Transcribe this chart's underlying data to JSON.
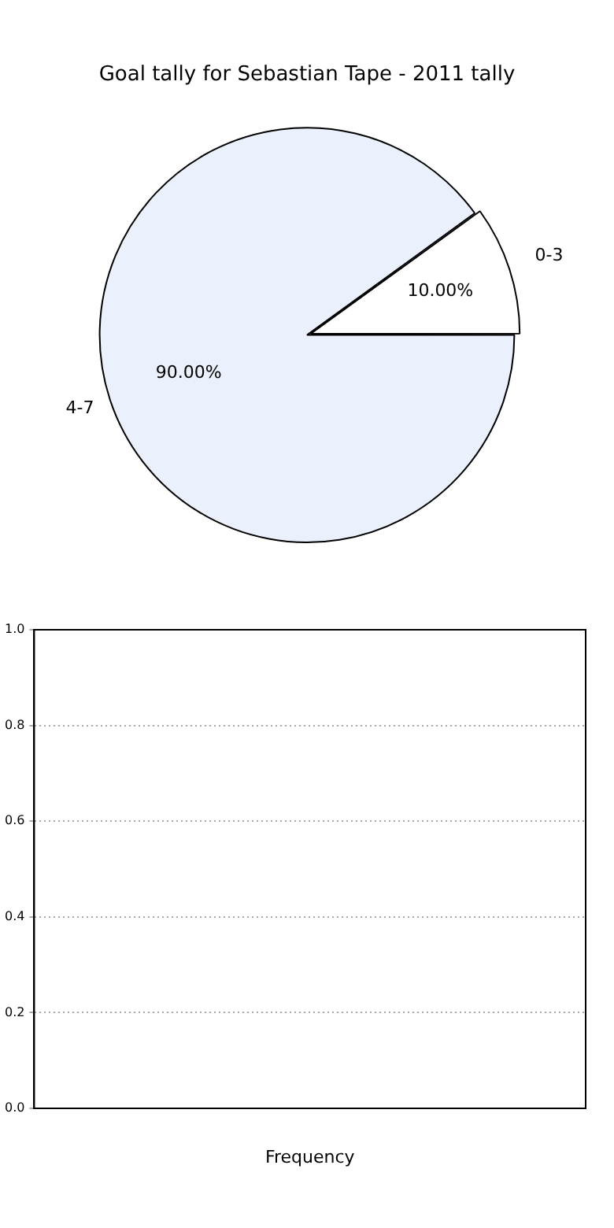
{
  "chart_data": [
    {
      "type": "pie",
      "title": "Goal tally for Sebastian Tape - 2011 tally",
      "categories": [
        "0-3",
        "4-7"
      ],
      "values": [
        10,
        90
      ],
      "colors": [
        "#ffffff",
        "#eaf0fc"
      ],
      "value_labels": [
        "10.00%",
        "90.00%"
      ]
    },
    {
      "type": "bar",
      "xlabel": "Frequency",
      "categories": [
        null
      ],
      "values": [
        null
      ],
      "ylim": [
        0,
        1
      ],
      "yticks": [
        {
          "value": 0,
          "label": "0.0"
        },
        0.2,
        0.4,
        0.6,
        0.8,
        {
          "value": 1,
          "label": "1.0"
        }
      ],
      "grid": "y"
    }
  ]
}
